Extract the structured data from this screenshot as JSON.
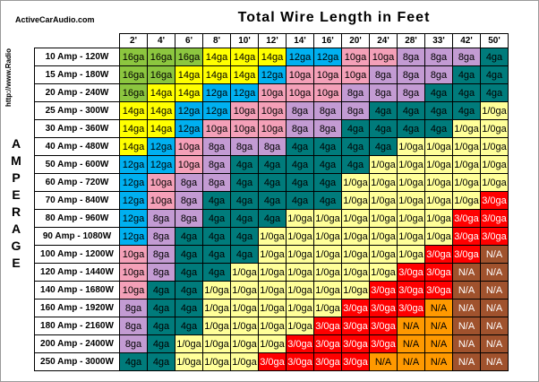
{
  "brand": "ActiveCarAudio.com",
  "url": "http://www.Radio",
  "axis_label": "AMPERAGE",
  "title": "Total Wire Length in Feet",
  "lengths": [
    "2'",
    "4'",
    "6'",
    "8'",
    "10'",
    "12'",
    "14'",
    "16'",
    "20'",
    "24'",
    "28'",
    "33'",
    "42'",
    "50'"
  ],
  "amperages": [
    "10 Amp - 120W",
    "15 Amp - 180W",
    "20 Amp - 240W",
    "25 Amp - 300W",
    "30 Amp - 360W",
    "40 Amp - 480W",
    "50 Amp - 600W",
    "60 Amp - 720W",
    "70 Amp - 840W",
    "80 Amp - 960W",
    "90 Amp - 1080W",
    "100 Amp - 1200W",
    "120 Amp - 1440W",
    "140 Amp - 1680W",
    "160 Amp - 1920W",
    "180 Amp - 2160W",
    "200 Amp - 2400W",
    "250 Amp - 3000W"
  ],
  "gauges": [
    [
      "16ga",
      "16ga",
      "16ga",
      "14ga",
      "14ga",
      "14ga",
      "12ga",
      "12ga",
      "10ga",
      "10ga",
      "8ga",
      "8ga",
      "8ga",
      "4ga"
    ],
    [
      "16ga",
      "16ga",
      "14ga",
      "14ga",
      "14ga",
      "12ga",
      "10ga",
      "10ga",
      "10ga",
      "8ga",
      "8ga",
      "8ga",
      "4ga",
      "4ga"
    ],
    [
      "16ga",
      "14ga",
      "14ga",
      "12ga",
      "12ga",
      "10ga",
      "10ga",
      "10ga",
      "8ga",
      "8ga",
      "8ga",
      "4ga",
      "4ga",
      "4ga"
    ],
    [
      "14ga",
      "14ga",
      "12ga",
      "12ga",
      "10ga",
      "10ga",
      "8ga",
      "8ga",
      "8ga",
      "4ga",
      "4ga",
      "4ga",
      "4ga",
      "1/0ga"
    ],
    [
      "14ga",
      "14ga",
      "12ga",
      "10ga",
      "10ga",
      "10ga",
      "8ga",
      "8ga",
      "4ga",
      "4ga",
      "4ga",
      "4ga",
      "1/0ga",
      "1/0ga"
    ],
    [
      "14ga",
      "12ga",
      "10ga",
      "8ga",
      "8ga",
      "8ga",
      "4ga",
      "4ga",
      "4ga",
      "4ga",
      "1/0ga",
      "1/0ga",
      "1/0ga",
      "1/0ga"
    ],
    [
      "12ga",
      "12ga",
      "10ga",
      "8ga",
      "4ga",
      "4ga",
      "4ga",
      "4ga",
      "4ga",
      "1/0ga",
      "1/0ga",
      "1/0ga",
      "1/0ga",
      "1/0ga"
    ],
    [
      "12ga",
      "10ga",
      "8ga",
      "8ga",
      "4ga",
      "4ga",
      "4ga",
      "4ga",
      "1/0ga",
      "1/0ga",
      "1/0ga",
      "1/0ga",
      "1/0ga",
      "1/0ga"
    ],
    [
      "12ga",
      "10ga",
      "8ga",
      "4ga",
      "4ga",
      "4ga",
      "4ga",
      "4ga",
      "1/0ga",
      "1/0ga",
      "1/0ga",
      "1/0ga",
      "1/0ga",
      "3/0ga"
    ],
    [
      "12ga",
      "8ga",
      "8ga",
      "4ga",
      "4ga",
      "4ga",
      "1/0ga",
      "1/0ga",
      "1/0ga",
      "1/0ga",
      "1/0ga",
      "1/0ga",
      "3/0ga",
      "3/0ga"
    ],
    [
      "12ga",
      "8ga",
      "4ga",
      "4ga",
      "4ga",
      "1/0ga",
      "1/0ga",
      "1/0ga",
      "1/0ga",
      "1/0ga",
      "1/0ga",
      "1/0ga",
      "3/0ga",
      "3/0ga"
    ],
    [
      "10ga",
      "8ga",
      "4ga",
      "4ga",
      "4ga",
      "1/0ga",
      "1/0ga",
      "1/0ga",
      "1/0ga",
      "1/0ga",
      "1/0ga",
      "3/0ga",
      "3/0ga",
      "N/A"
    ],
    [
      "10ga",
      "8ga",
      "4ga",
      "4ga",
      "1/0ga",
      "1/0ga",
      "1/0ga",
      "1/0ga",
      "1/0ga",
      "1/0ga",
      "3/0ga",
      "3/0ga",
      "N/A",
      "N/A"
    ],
    [
      "10ga",
      "4ga",
      "4ga",
      "1/0ga",
      "1/0ga",
      "1/0ga",
      "1/0ga",
      "1/0ga",
      "1/0ga",
      "3/0ga",
      "3/0ga",
      "3/0ga",
      "N/A",
      "N/A"
    ],
    [
      "8ga",
      "4ga",
      "4ga",
      "1/0ga",
      "1/0ga",
      "1/0ga",
      "1/0ga",
      "1/0ga",
      "3/0ga",
      "3/0ga",
      "3/0ga",
      "N/A",
      "N/A",
      "N/A"
    ],
    [
      "8ga",
      "4ga",
      "4ga",
      "1/0ga",
      "1/0ga",
      "1/0ga",
      "1/0ga",
      "3/0ga",
      "3/0ga",
      "3/0ga",
      "N/A",
      "N/A",
      "N/A",
      "N/A"
    ],
    [
      "8ga",
      "4ga",
      "1/0ga",
      "1/0ga",
      "1/0ga",
      "1/0ga",
      "3/0ga",
      "3/0ga",
      "3/0ga",
      "3/0ga",
      "N/A",
      "N/A",
      "N/A",
      "N/A"
    ],
    [
      "4ga",
      "4ga",
      "1/0ga",
      "1/0ga",
      "1/0ga",
      "3/0ga",
      "3/0ga",
      "3/0ga",
      "3/0ga",
      "N/A",
      "N/A",
      "N/A",
      "N/A",
      "N/A"
    ]
  ],
  "gauge_colors": {
    "16ga": "#8cc63f",
    "14ga": "#ffff00",
    "12ga": "#00b0f0",
    "10ga": "#f4a0b8",
    "8ga": "#c39bd3",
    "4ga": "#007b7b",
    "1/0ga": "#ffff99",
    "3/0ga": "#ff0000"
  },
  "na_colors": [
    "#ff9900",
    "#a0522d",
    "#b5651d"
  ]
}
